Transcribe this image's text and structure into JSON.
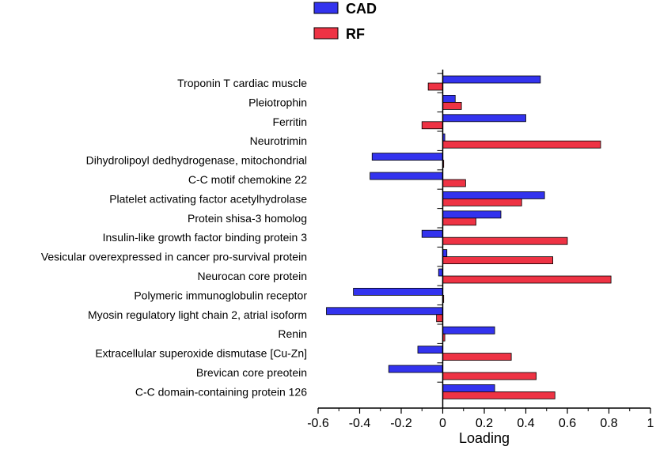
{
  "chart_data": {
    "type": "bar",
    "orientation": "horizontal",
    "categories": [
      "Troponin T cardiac muscle",
      "Pleiotrophin",
      "Ferritin",
      "Neurotrimin",
      "Dihydrolipoyl dedhydrogenase, mitochondrial",
      "C-C motif chemokine 22",
      "Platelet activating factor acetylhydrolase",
      "Protein shisa-3 homolog",
      "Insulin-like growth factor binding protein 3",
      "Vesicular overexpressed in cancer pro-survival protein",
      "Neurocan core protein",
      "Polymeric immunoglobulin receptor",
      "Myosin regulatory light chain 2, atrial isoform",
      "Renin",
      "Extracellular superoxide dismutase [Cu-Zn]",
      "Brevican core preotein",
      "C-C domain-containing protein 126"
    ],
    "series": [
      {
        "name": "CAD",
        "color": "#3333ee",
        "values": [
          0.47,
          0.06,
          0.4,
          0.01,
          -0.34,
          -0.35,
          0.49,
          0.28,
          -0.1,
          0.02,
          -0.02,
          -0.43,
          -0.56,
          0.25,
          -0.12,
          -0.26,
          0.25
        ]
      },
      {
        "name": "RF",
        "color": "#ee3344",
        "values": [
          -0.07,
          0.09,
          -0.1,
          0.76,
          0.0,
          0.11,
          0.38,
          0.16,
          0.6,
          0.53,
          0.81,
          0.0,
          -0.03,
          0.01,
          0.33,
          0.45,
          0.54
        ]
      }
    ],
    "xlabel": "Loading",
    "xlim": [
      -0.6,
      1.0
    ],
    "xticks": [
      "-0.6",
      "-0.4",
      "-0.2",
      "0",
      "0.2",
      "0.4",
      "0.6",
      "0.8",
      "1"
    ],
    "legend_position": "top-left",
    "grid": false
  }
}
